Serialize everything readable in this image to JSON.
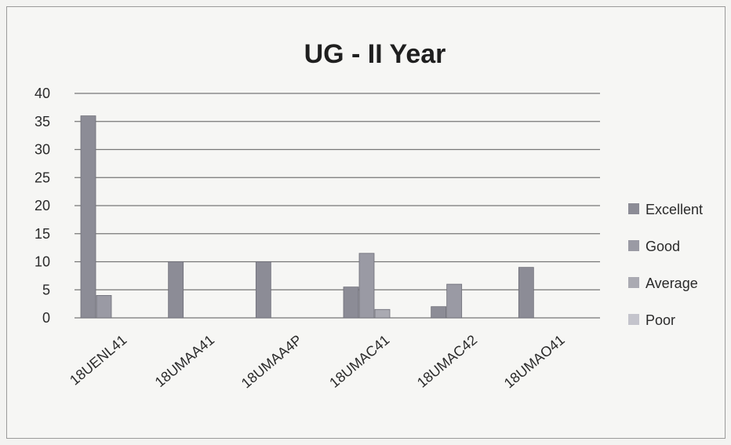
{
  "chart_data": {
    "type": "bar",
    "title": "UG - II Year",
    "xlabel": "",
    "ylabel": "",
    "ylim": [
      0,
      40
    ],
    "yticks": [
      0,
      5,
      10,
      15,
      20,
      25,
      30,
      35,
      40
    ],
    "grid": true,
    "legend_position": "right",
    "categories": [
      "18UENL41",
      "18UMAA41",
      "18UMAA4P",
      "18UMAC41",
      "18UMAC42",
      "18UMAO41"
    ],
    "series": [
      {
        "name": "Excellent",
        "color": "#8c8c96",
        "values": [
          36,
          10,
          10,
          5.5,
          2,
          9
        ]
      },
      {
        "name": "Good",
        "color": "#9a9aa4",
        "values": [
          4,
          0,
          0,
          11.5,
          6,
          0
        ]
      },
      {
        "name": "Average",
        "color": "#aaaab2",
        "values": [
          0,
          0,
          0,
          1.5,
          0,
          0
        ]
      },
      {
        "name": "Poor",
        "color": "#c4c4cc",
        "values": [
          0,
          0,
          0,
          0,
          0,
          0
        ]
      }
    ]
  }
}
